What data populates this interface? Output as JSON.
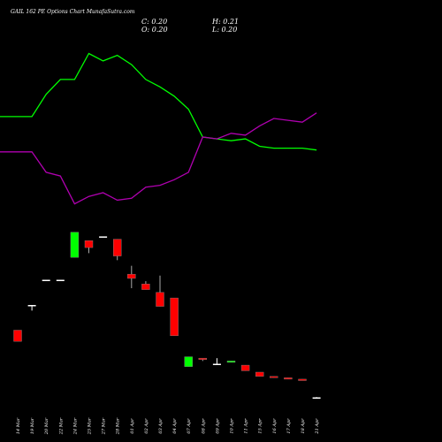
{
  "title": "GAIL 162 PE Options Chart MunafaSutra.com",
  "ohlc": {
    "c": "C: 0.20",
    "h": "H: 0.21",
    "o": "O: 0.20",
    "l": "L: 0.20"
  },
  "colors": {
    "up": "#00ff00",
    "down": "#ff0000",
    "doji": "#ffffff",
    "green_line": "#00ff00",
    "magenta_line": "#b000b0",
    "background": "#000000"
  },
  "chart_data": {
    "type": "candlestick",
    "grid": false,
    "categories": [
      "14 Mar",
      "19 Mar",
      "20 Mar",
      "22 Mar",
      "24 Mar",
      "25 Mar",
      "27 Mar",
      "28 Mar",
      "01 Apr",
      "02 Apr",
      "03 Apr",
      "04 Apr",
      "07 Apr",
      "08 Apr",
      "09 Apr",
      "10 Apr",
      "11 Apr",
      "15 Apr",
      "16 Apr",
      "17 Apr",
      "18 Apr",
      "21 Apr"
    ],
    "candles": [
      {
        "o": 2.6,
        "h": 2.6,
        "l": 2.2,
        "c": 2.2
      },
      {
        "o": 3.5,
        "h": 3.5,
        "l": 3.3,
        "c": 3.5
      },
      {
        "o": 4.4,
        "h": 4.4,
        "l": 4.4,
        "c": 4.4
      },
      {
        "o": 4.4,
        "h": 4.4,
        "l": 4.4,
        "c": 4.4
      },
      {
        "o": 5.2,
        "h": 6.1,
        "l": 5.2,
        "c": 6.1
      },
      {
        "o": 5.8,
        "h": 5.8,
        "l": 5.35,
        "c": 5.55
      },
      {
        "o": 5.95,
        "h": 5.95,
        "l": 5.95,
        "c": 5.95
      },
      {
        "o": 5.85,
        "h": 5.85,
        "l": 5.1,
        "c": 5.25
      },
      {
        "o": 4.6,
        "h": 4.9,
        "l": 4.1,
        "c": 4.45
      },
      {
        "o": 4.25,
        "h": 4.35,
        "l": 4.05,
        "c": 4.05
      },
      {
        "o": 3.95,
        "h": 4.55,
        "l": 3.45,
        "c": 3.45
      },
      {
        "o": 3.75,
        "h": 3.75,
        "l": 2.4,
        "c": 2.4
      },
      {
        "o": 1.3,
        "h": 1.65,
        "l": 1.3,
        "c": 1.65
      },
      {
        "o": 1.6,
        "h": 1.6,
        "l": 1.5,
        "c": 1.55
      },
      {
        "o": 1.4,
        "h": 1.6,
        "l": 1.4,
        "c": 1.4
      },
      {
        "o": 1.45,
        "h": 1.5,
        "l": 1.45,
        "c": 1.5
      },
      {
        "o": 1.35,
        "h": 1.35,
        "l": 1.15,
        "c": 1.15
      },
      {
        "o": 1.1,
        "h": 1.1,
        "l": 0.95,
        "c": 0.95
      },
      {
        "o": 0.95,
        "h": 0.95,
        "l": 0.9,
        "c": 0.9
      },
      {
        "o": 0.9,
        "h": 0.9,
        "l": 0.85,
        "c": 0.85
      },
      {
        "o": 0.85,
        "h": 0.85,
        "l": 0.8,
        "c": 0.8
      },
      {
        "o": 0.2,
        "h": 0.21,
        "l": 0.2,
        "c": 0.2
      }
    ],
    "ylim": [
      0.5,
      6.5
    ],
    "overlay": {
      "ylim": [
        0,
        100
      ],
      "series": [
        {
          "color": "#00ff00",
          "values": [
            61,
            61,
            73,
            81,
            81,
            95,
            91,
            94,
            89,
            81,
            77,
            72,
            65,
            50,
            49,
            48,
            49,
            45,
            44,
            44,
            44,
            43
          ]
        },
        {
          "color": "#b000b0",
          "values": [
            42,
            42,
            31,
            29,
            14,
            18,
            20,
            16,
            17,
            23,
            24,
            27,
            31,
            50,
            49,
            52,
            51,
            56,
            60,
            59,
            58,
            63
          ]
        }
      ]
    }
  }
}
